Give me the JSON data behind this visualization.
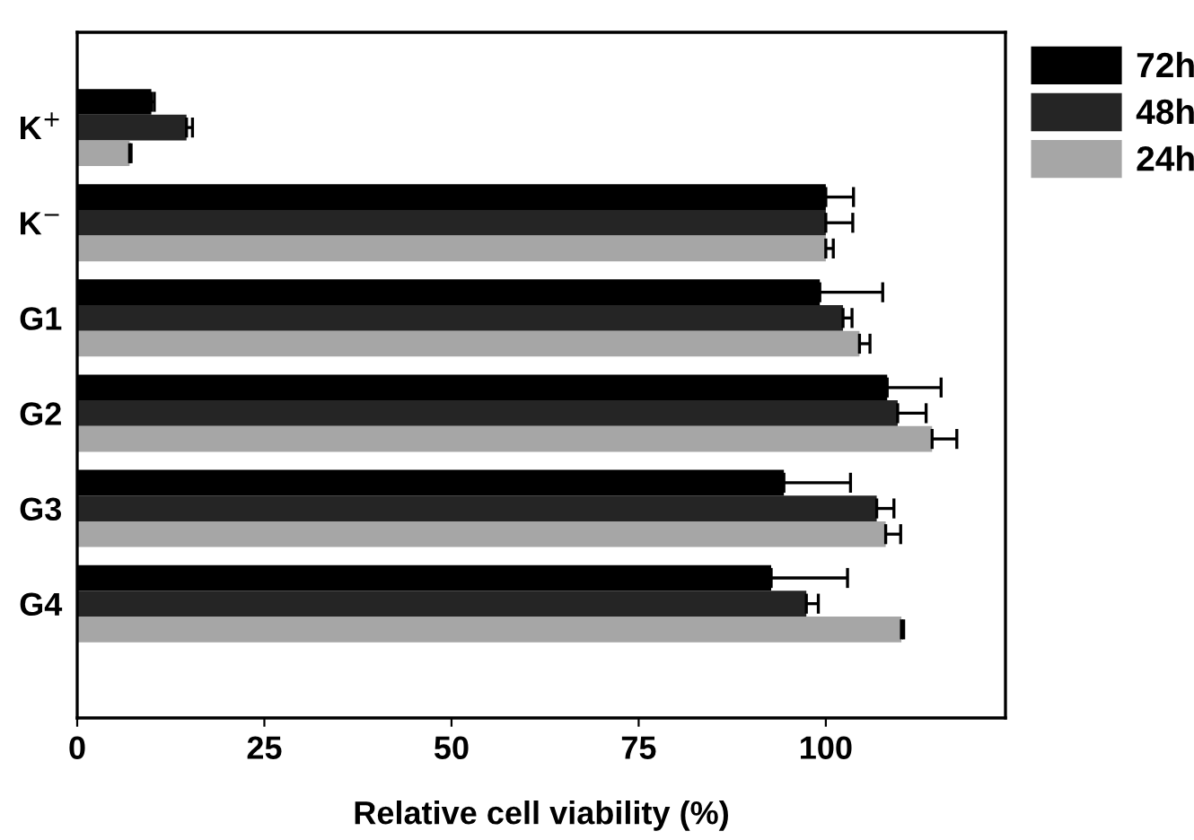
{
  "chart_data": {
    "type": "bar",
    "orientation": "horizontal",
    "xlabel": "Relative cell viability (%)",
    "categories": [
      "K$^{+}$",
      "K$^{−}$",
      "G1",
      "G2",
      "G3",
      "G4"
    ],
    "series": [
      {
        "name": "72h",
        "color": "#000000",
        "values": [
          9.9,
          100,
          99.2,
          108.2,
          94.4,
          92.7
        ],
        "errors": [
          [
            9.9,
            10.3
          ],
          [
            100,
            103.7
          ],
          [
            99.2,
            107.6
          ],
          [
            108.2,
            115.4
          ],
          [
            94.4,
            103.3
          ],
          [
            92.7,
            102.9
          ]
        ]
      },
      {
        "name": "48h",
        "color": "#252525",
        "values": [
          14.6,
          100,
          102.3,
          109.6,
          106.8,
          97.4
        ],
        "errors": [
          [
            14.6,
            15.4
          ],
          [
            100,
            103.6
          ],
          [
            102.3,
            103.5
          ],
          [
            109.6,
            113.4
          ],
          [
            106.8,
            109.1
          ],
          [
            97.4,
            99.0
          ]
        ]
      },
      {
        "name": "24h",
        "color": "#a6a6a6",
        "values": [
          7.0,
          100,
          104.5,
          114.2,
          108.0,
          110.1
        ],
        "errors": [
          [
            7.0,
            7.2
          ],
          [
            100,
            101.0
          ],
          [
            104.5,
            105.9
          ],
          [
            114.2,
            117.5
          ],
          [
            108.0,
            110.0
          ],
          [
            110.1,
            110.4
          ]
        ]
      }
    ],
    "xlim": [
      0,
      124
    ],
    "xticks": [
      0,
      25,
      50,
      75,
      100
    ],
    "legend": "top right",
    "grid": false
  }
}
